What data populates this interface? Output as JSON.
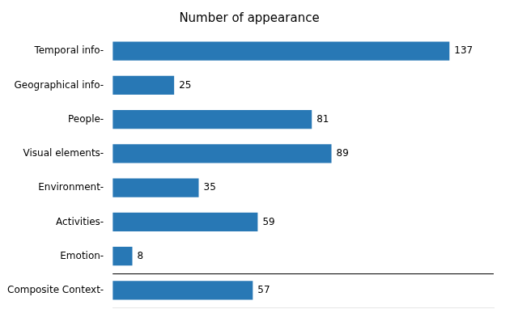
{
  "chart_data": {
    "type": "bar",
    "orientation": "horizontal",
    "title": "Number of appearance",
    "categories": [
      "Temporal info-",
      "Geographical info-",
      "People-",
      "Visual elements-",
      "Environment-",
      "Activities-",
      "Emotion-",
      "Composite Context-"
    ],
    "values": [
      137,
      25,
      81,
      89,
      35,
      59,
      8,
      57
    ],
    "color": "#2878b5",
    "xlim": [
      0,
      155
    ],
    "data_labels": true,
    "tick_labels": "y",
    "grid": false
  }
}
